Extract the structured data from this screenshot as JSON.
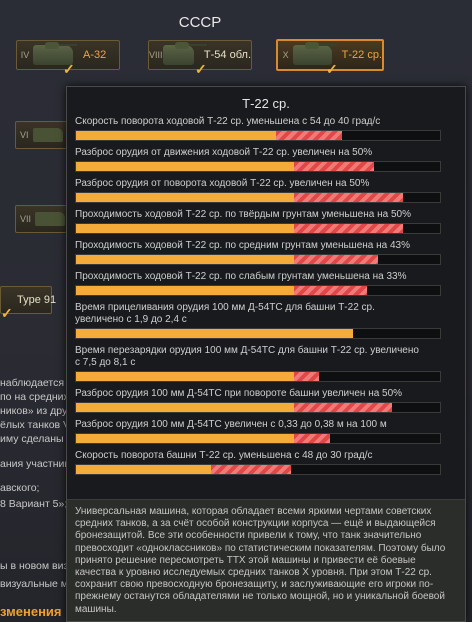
{
  "nation": "СССР",
  "tanks_row": [
    {
      "tier": "IV",
      "name": "А-32",
      "premium": true
    },
    {
      "tier": "VIII",
      "name": "Т-54 обл.",
      "premium": false
    },
    {
      "tier": "X",
      "name": "Т-22 ср.",
      "premium": true,
      "selected": true
    }
  ],
  "side_tanks": [
    {
      "tier": "VI"
    },
    {
      "tier": "VII"
    }
  ],
  "type91": {
    "name": "Type 91"
  },
  "left_text": [
    "наблюдается я",
    "по на средних у",
    "ников» из дру",
    "ёлых танков VI",
    "иму сделаны пр",
    "ания участник",
    "авского;",
    "8 Вариант 5»;",
    "ы в новом виз",
    "визуальные мо"
  ],
  "section_heading": "зменения",
  "popup": {
    "title": "Т-22 ср.",
    "stats": [
      {
        "label": "Скорость поворота ходовой Т-22 ср. уменьшена с 54 до 40 град/с",
        "fill": 0.55,
        "loss": 0.18
      },
      {
        "label": "Разброс орудия от движения ходовой Т-22 ср. увеличен на 50%",
        "fill": 0.6,
        "loss": 0.22
      },
      {
        "label": "Разброс орудия от поворота ходовой Т-22 ср. увеличен на 50%",
        "fill": 0.6,
        "loss": 0.3
      },
      {
        "label": "Проходимость ходовой Т-22 ср. по твёрдым грунтам уменьшена на 50%",
        "fill": 0.6,
        "loss": 0.3
      },
      {
        "label": "Проходимость ходовой Т-22 ср. по средним грунтам уменьшена на 43%",
        "fill": 0.6,
        "loss": 0.23
      },
      {
        "label": "Проходимость ходовой Т-22 ср. по слабым грунтам уменьшена на 33%",
        "fill": 0.6,
        "loss": 0.2
      },
      {
        "label": "Время прицеливания орудия 100 мм Д-54ТС для башни Т-22 ср. увеличено с 1,9 до 2,4 с",
        "fill": 0.76,
        "loss": 0.0,
        "multi": true
      },
      {
        "label": "Время перезарядки орудия 100 мм Д-54ТС для башни Т-22 ср. увеличено с 7,5 до 8,1 с",
        "fill": 0.6,
        "loss": 0.07,
        "multi": true
      },
      {
        "label": "Разброс орудия 100 мм Д-54ТС при повороте башни увеличен на 50%",
        "fill": 0.6,
        "loss": 0.27
      },
      {
        "label": "Разброс орудия 100 мм Д-54ТС увеличен с 0,33 до 0,38 м на 100 м",
        "fill": 0.6,
        "loss": 0.1
      },
      {
        "label": "Скорость поворота башни Т-22 ср. уменьшена с 48 до 30 град/с",
        "fill": 0.37,
        "loss": 0.22
      }
    ],
    "description": "Универсальная машина, которая обладает всеми яркими чертами советских средних танков, а за счёт особой конструкции корпуса — ещё и выдающейся бронезащитой. Все эти особенности привели к тому, что танк значительно превосходит «одноклассников» по статистическим показателям. Поэтому было принято решение пересмотреть ТТХ этой машины и привести её боевые качества к уровню исследуемых средних танков X уровня. При этом Т-22 ср. сохранит свою превосходную бронезащиту, и заслуживающие его игроки по-прежнему останутся обладателями не только мощной, но и уникальной боевой машины."
  },
  "colors": {
    "accent": "#f5ab3a",
    "loss": "#e04848",
    "selected_border": "#d98a2a"
  }
}
